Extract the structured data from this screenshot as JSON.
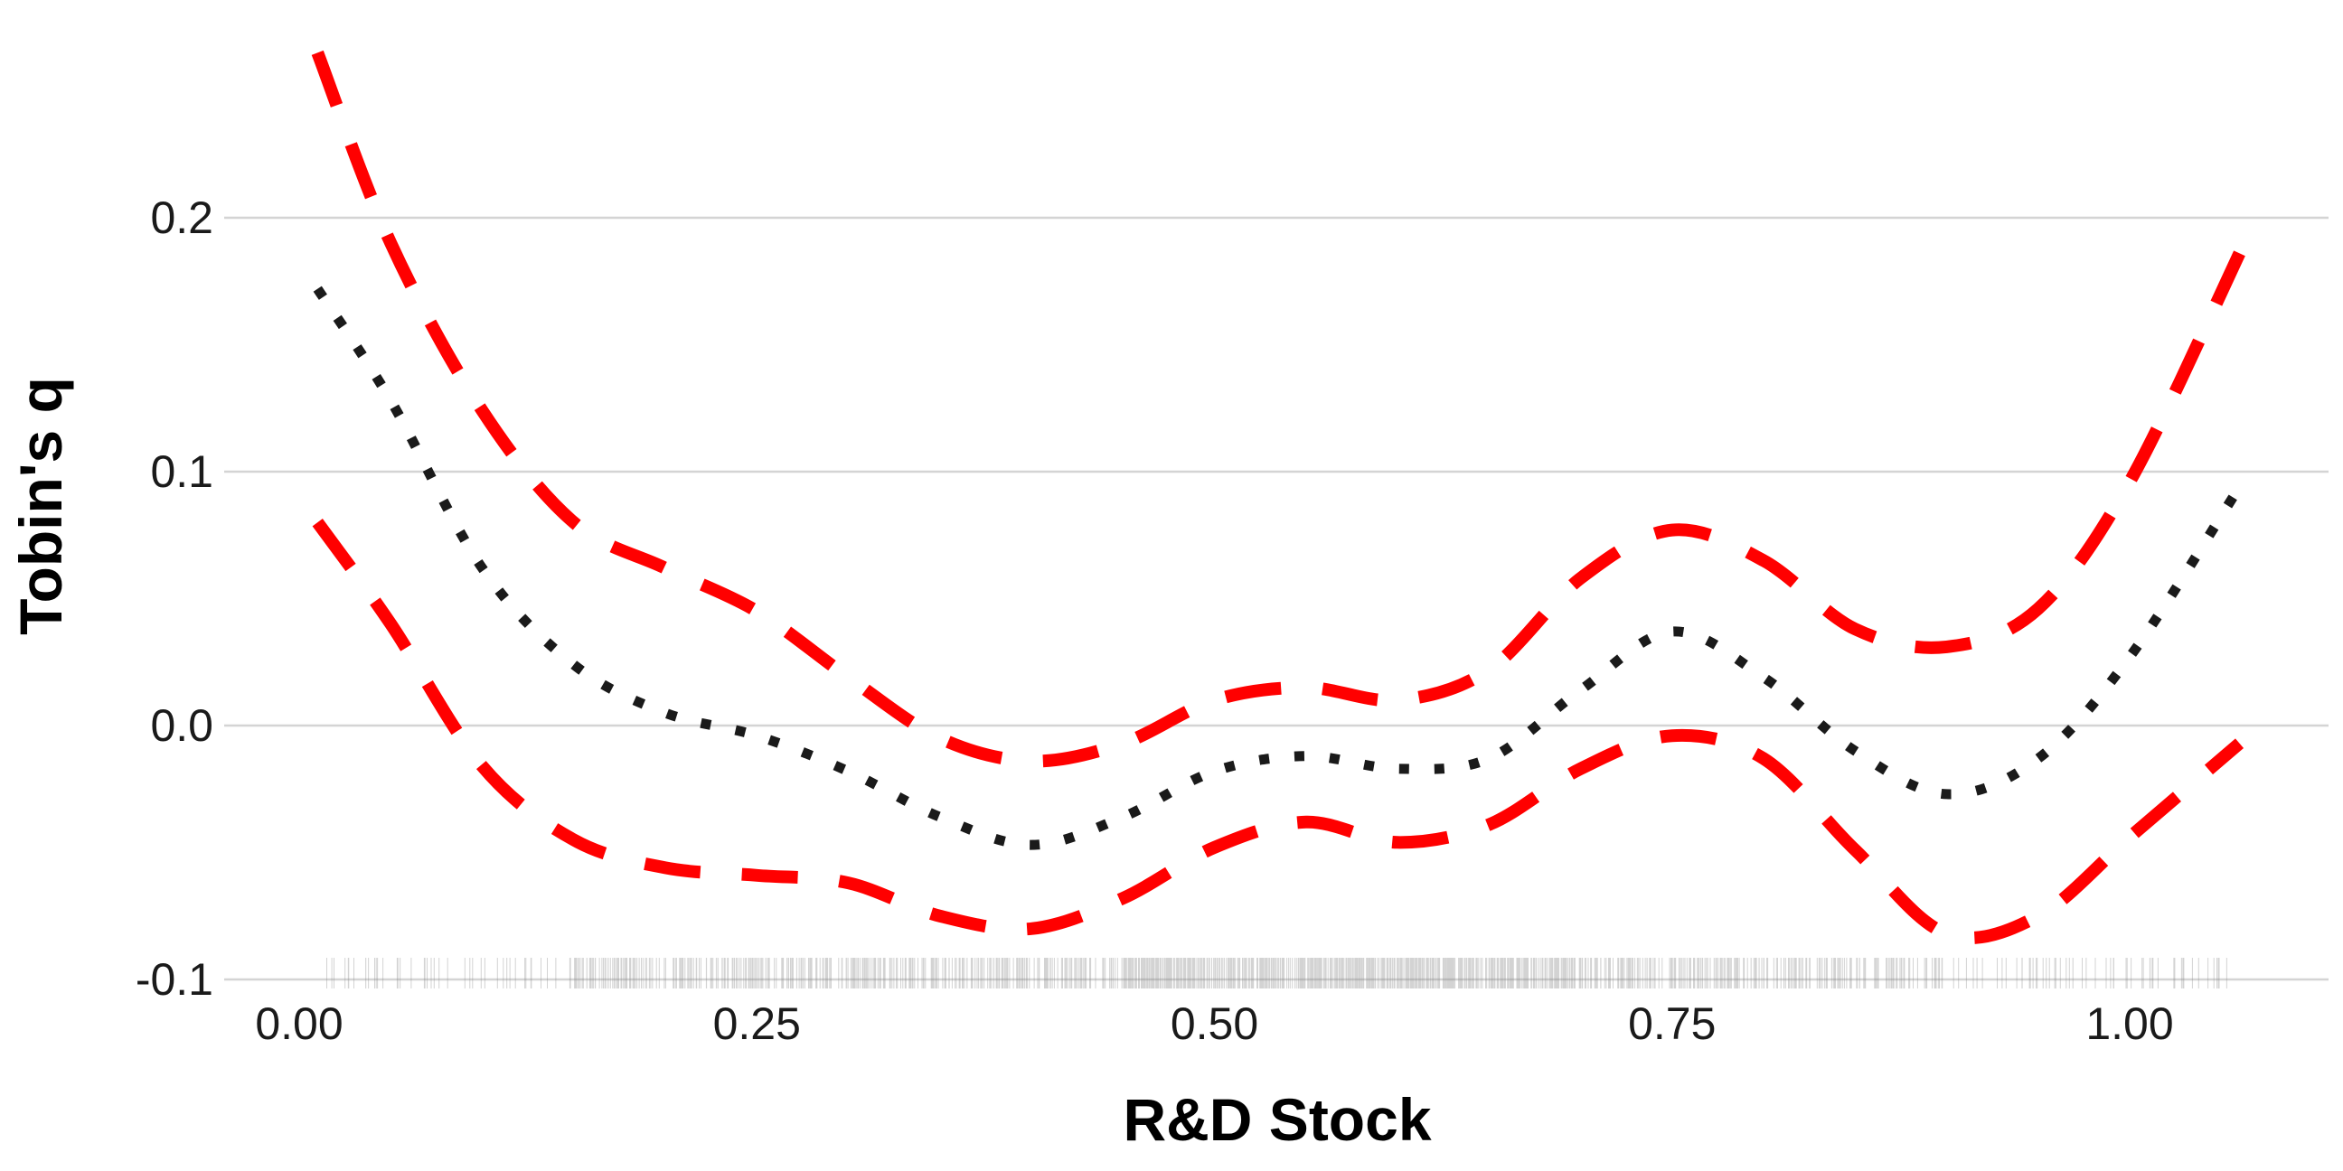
{
  "chart_data": {
    "type": "line",
    "title": "",
    "xlabel": "R&D Stock",
    "ylabel": "Tobin's q",
    "xlim": [
      -0.05,
      1.1
    ],
    "ylim": [
      -0.1,
      0.28
    ],
    "x_ticks": [
      {
        "value": 0.0,
        "label": "0.00"
      },
      {
        "value": 0.25,
        "label": "0.25"
      },
      {
        "value": 0.5,
        "label": "0.50"
      },
      {
        "value": 0.75,
        "label": "0.75"
      },
      {
        "value": 1.0,
        "label": "1.00"
      }
    ],
    "y_ticks": [
      {
        "value": 0.2,
        "label": "0.2"
      },
      {
        "value": 0.1,
        "label": "0.1"
      },
      {
        "value": 0.0,
        "label": "0.0"
      },
      {
        "value": -0.1,
        "label": "-0.1"
      }
    ],
    "grid": "horizontal-major",
    "legend": "none",
    "series": [
      {
        "role": "estimate",
        "color": "#1a1a1a",
        "style": "dotted",
        "x": [
          0.01,
          0.05,
          0.1,
          0.15,
          0.2,
          0.25,
          0.3,
          0.35,
          0.4,
          0.45,
          0.5,
          0.55,
          0.6,
          0.65,
          0.7,
          0.75,
          0.8,
          0.85,
          0.9,
          0.95,
          1.0,
          1.06
        ],
        "y": [
          0.172,
          0.128,
          0.062,
          0.024,
          0.005,
          -0.004,
          -0.018,
          -0.036,
          -0.047,
          -0.036,
          -0.018,
          -0.012,
          -0.017,
          -0.013,
          0.014,
          0.037,
          0.019,
          -0.01,
          -0.027,
          -0.013,
          0.027,
          0.094
        ]
      },
      {
        "role": "upper",
        "color": "#ff0000",
        "style": "dashed",
        "x": [
          0.01,
          0.05,
          0.1,
          0.15,
          0.2,
          0.25,
          0.3,
          0.35,
          0.4,
          0.45,
          0.5,
          0.55,
          0.6,
          0.65,
          0.7,
          0.75,
          0.8,
          0.85,
          0.9,
          0.95,
          1.0,
          1.06
        ],
        "y": [
          0.265,
          0.19,
          0.124,
          0.08,
          0.062,
          0.045,
          0.019,
          -0.005,
          -0.014,
          -0.007,
          0.01,
          0.015,
          0.01,
          0.022,
          0.058,
          0.077,
          0.065,
          0.038,
          0.031,
          0.046,
          0.096,
          0.186
        ]
      },
      {
        "role": "lower",
        "color": "#ff0000",
        "style": "dashed",
        "x": [
          0.01,
          0.05,
          0.1,
          0.15,
          0.2,
          0.25,
          0.3,
          0.35,
          0.4,
          0.45,
          0.5,
          0.55,
          0.6,
          0.65,
          0.7,
          0.75,
          0.8,
          0.85,
          0.9,
          0.95,
          1.0,
          1.06
        ],
        "y": [
          0.08,
          0.04,
          -0.016,
          -0.045,
          -0.056,
          -0.059,
          -0.062,
          -0.075,
          -0.08,
          -0.068,
          -0.048,
          -0.038,
          -0.046,
          -0.039,
          -0.017,
          -0.004,
          -0.013,
          -0.049,
          -0.082,
          -0.075,
          -0.044,
          -0.007
        ]
      }
    ],
    "rug": {
      "color": "#808080",
      "x_range": [
        0.015,
        1.055
      ]
    }
  }
}
